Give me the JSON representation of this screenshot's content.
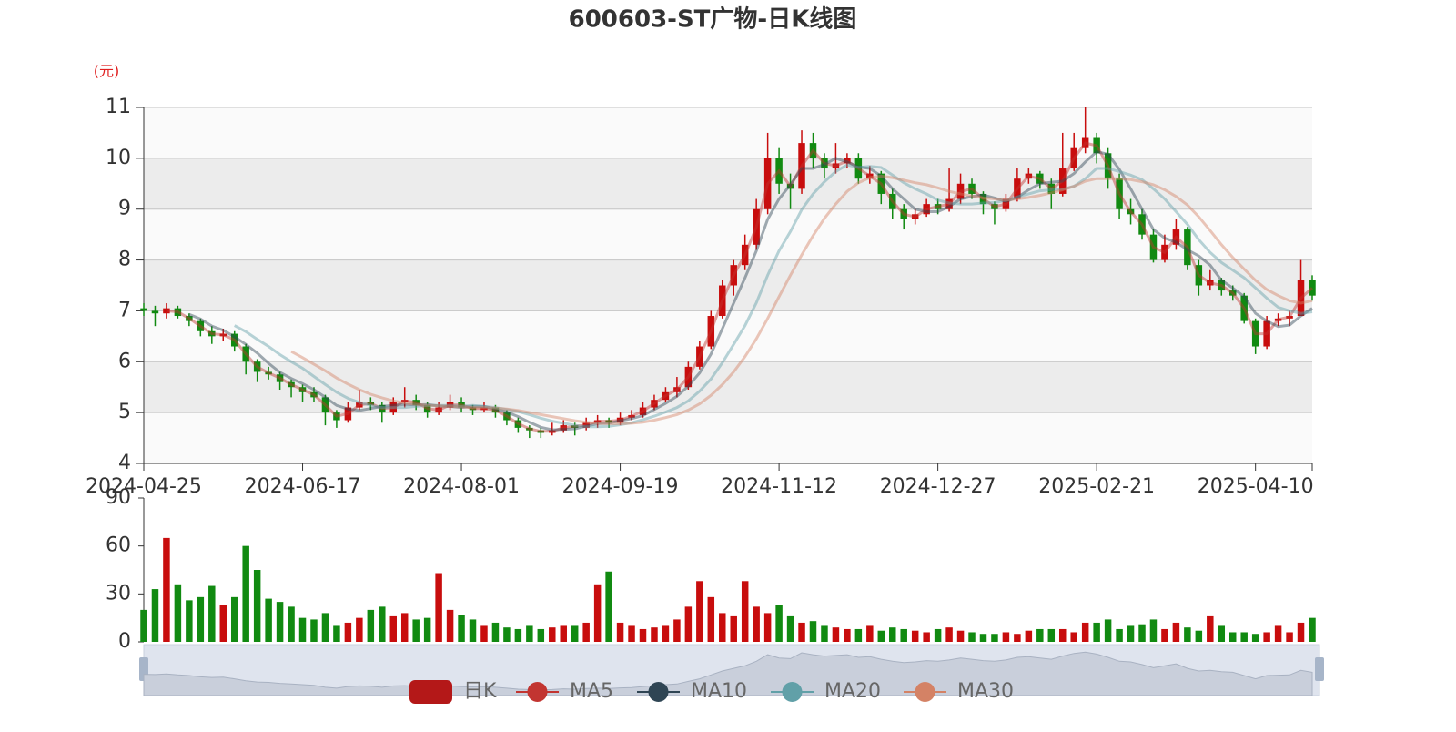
{
  "chart_data": {
    "type": "candlestick",
    "title": "600603-ST广物-日K线图",
    "y_unit": "(元)",
    "categories": [
      "2024-04-25",
      null,
      null,
      null,
      null,
      null,
      null,
      null,
      null,
      null,
      null,
      null,
      null,
      null,
      "2024-06-17",
      null,
      null,
      null,
      null,
      null,
      null,
      null,
      null,
      null,
      null,
      null,
      null,
      null,
      "2024-08-01",
      null,
      null,
      null,
      null,
      null,
      null,
      null,
      null,
      null,
      null,
      null,
      null,
      null,
      "2024-09-19",
      null,
      null,
      null,
      null,
      null,
      null,
      null,
      null,
      null,
      null,
      null,
      null,
      null,
      "2024-11-12",
      null,
      null,
      null,
      null,
      null,
      null,
      null,
      null,
      null,
      null,
      null,
      null,
      null,
      "2024-12-27",
      null,
      null,
      null,
      null,
      null,
      null,
      null,
      null,
      null,
      null,
      null,
      null,
      null,
      "2025-02-21",
      null,
      null,
      null,
      null,
      null,
      null,
      null,
      null,
      null,
      null,
      null,
      null,
      null,
      "2025-04-10",
      null,
      null,
      null,
      null,
      null
    ],
    "ylim": [
      4,
      11
    ],
    "yticks": [
      4,
      5,
      6,
      7,
      8,
      9,
      10,
      11
    ],
    "grid": true,
    "up_color": "#c80d0d",
    "down_color": "#118a11",
    "series": [
      {
        "name": "日K",
        "type": "candlestick",
        "color": "#b41818",
        "values": [
          [
            7.05,
            7.0,
            6.9,
            7.15
          ],
          [
            7.0,
            6.95,
            6.7,
            7.1
          ],
          [
            6.95,
            7.05,
            6.85,
            7.15
          ],
          [
            7.05,
            6.9,
            6.85,
            7.1
          ],
          [
            6.9,
            6.8,
            6.7,
            6.95
          ],
          [
            6.8,
            6.6,
            6.5,
            6.85
          ],
          [
            6.6,
            6.5,
            6.35,
            6.7
          ],
          [
            6.5,
            6.55,
            6.4,
            6.65
          ],
          [
            6.55,
            6.3,
            6.2,
            6.6
          ],
          [
            6.3,
            6.0,
            5.75,
            6.35
          ],
          [
            6.0,
            5.8,
            5.6,
            6.05
          ],
          [
            5.8,
            5.75,
            5.65,
            5.9
          ],
          [
            5.75,
            5.6,
            5.45,
            5.8
          ],
          [
            5.6,
            5.5,
            5.3,
            5.65
          ],
          [
            5.5,
            5.4,
            5.2,
            5.55
          ],
          [
            5.4,
            5.3,
            5.2,
            5.5
          ],
          [
            5.3,
            5.0,
            4.75,
            5.35
          ],
          [
            5.0,
            4.85,
            4.7,
            5.05
          ],
          [
            4.85,
            5.1,
            4.8,
            5.2
          ],
          [
            5.1,
            5.2,
            5.05,
            5.45
          ],
          [
            5.2,
            5.15,
            5.05,
            5.3
          ],
          [
            5.15,
            5.0,
            4.8,
            5.2
          ],
          [
            5.0,
            5.2,
            4.95,
            5.3
          ],
          [
            5.2,
            5.25,
            5.1,
            5.5
          ],
          [
            5.25,
            5.15,
            5.05,
            5.35
          ],
          [
            5.15,
            5.0,
            4.9,
            5.2
          ],
          [
            5.0,
            5.1,
            4.95,
            5.2
          ],
          [
            5.1,
            5.2,
            5.05,
            5.35
          ],
          [
            5.2,
            5.1,
            5.0,
            5.3
          ],
          [
            5.1,
            5.05,
            4.95,
            5.15
          ],
          [
            5.05,
            5.1,
            5.0,
            5.2
          ],
          [
            5.1,
            5.0,
            4.9,
            5.15
          ],
          [
            5.0,
            4.85,
            4.75,
            5.05
          ],
          [
            4.85,
            4.7,
            4.6,
            4.9
          ],
          [
            4.7,
            4.65,
            4.5,
            4.75
          ],
          [
            4.65,
            4.6,
            4.5,
            4.7
          ],
          [
            4.6,
            4.65,
            4.55,
            4.8
          ],
          [
            4.65,
            4.75,
            4.6,
            4.85
          ],
          [
            4.75,
            4.7,
            4.55,
            4.8
          ],
          [
            4.7,
            4.8,
            4.65,
            4.9
          ],
          [
            4.8,
            4.85,
            4.7,
            4.95
          ],
          [
            4.85,
            4.8,
            4.7,
            4.9
          ],
          [
            4.8,
            4.9,
            4.75,
            5.0
          ],
          [
            4.9,
            4.95,
            4.85,
            5.05
          ],
          [
            4.95,
            5.1,
            4.9,
            5.2
          ],
          [
            5.1,
            5.25,
            5.05,
            5.35
          ],
          [
            5.25,
            5.4,
            5.2,
            5.5
          ],
          [
            5.4,
            5.5,
            5.3,
            5.7
          ],
          [
            5.5,
            5.9,
            5.45,
            6.0
          ],
          [
            5.9,
            6.3,
            5.85,
            6.4
          ],
          [
            6.3,
            6.9,
            6.25,
            7.0
          ],
          [
            6.9,
            7.5,
            6.85,
            7.6
          ],
          [
            7.5,
            7.9,
            7.3,
            8.0
          ],
          [
            7.9,
            8.3,
            7.8,
            8.5
          ],
          [
            8.3,
            9.0,
            8.2,
            9.2
          ],
          [
            9.0,
            10.0,
            8.9,
            10.5
          ],
          [
            10.0,
            9.5,
            9.3,
            10.2
          ],
          [
            9.5,
            9.4,
            9.0,
            9.7
          ],
          [
            9.4,
            10.3,
            9.3,
            10.55
          ],
          [
            10.3,
            10.0,
            9.8,
            10.5
          ],
          [
            10.0,
            9.8,
            9.6,
            10.1
          ],
          [
            9.8,
            9.9,
            9.7,
            10.3
          ],
          [
            9.9,
            10.0,
            9.8,
            10.1
          ],
          [
            10.0,
            9.6,
            9.5,
            10.1
          ],
          [
            9.6,
            9.7,
            9.5,
            9.85
          ],
          [
            9.7,
            9.3,
            9.1,
            9.75
          ],
          [
            9.3,
            9.0,
            8.8,
            9.4
          ],
          [
            9.0,
            8.8,
            8.6,
            9.1
          ],
          [
            8.8,
            8.9,
            8.7,
            9.0
          ],
          [
            8.9,
            9.1,
            8.85,
            9.2
          ],
          [
            9.1,
            9.0,
            8.9,
            9.2
          ],
          [
            9.0,
            9.2,
            8.95,
            9.8
          ],
          [
            9.2,
            9.5,
            9.1,
            9.7
          ],
          [
            9.5,
            9.3,
            9.2,
            9.6
          ],
          [
            9.3,
            9.1,
            8.9,
            9.35
          ],
          [
            9.1,
            9.0,
            8.7,
            9.15
          ],
          [
            9.0,
            9.2,
            8.95,
            9.3
          ],
          [
            9.2,
            9.6,
            9.15,
            9.8
          ],
          [
            9.6,
            9.7,
            9.5,
            9.8
          ],
          [
            9.7,
            9.5,
            9.4,
            9.75
          ],
          [
            9.5,
            9.3,
            9.0,
            9.6
          ],
          [
            9.3,
            9.8,
            9.25,
            10.5
          ],
          [
            9.8,
            10.2,
            9.75,
            10.5
          ],
          [
            10.2,
            10.4,
            10.1,
            11.0
          ],
          [
            10.4,
            10.1,
            9.9,
            10.5
          ],
          [
            10.1,
            9.6,
            9.4,
            10.2
          ],
          [
            9.6,
            9.0,
            8.8,
            9.7
          ],
          [
            9.0,
            8.9,
            8.7,
            9.2
          ],
          [
            8.9,
            8.5,
            8.4,
            9.0
          ],
          [
            8.5,
            8.0,
            7.95,
            8.6
          ],
          [
            8.0,
            8.3,
            7.95,
            8.5
          ],
          [
            8.3,
            8.6,
            8.2,
            8.8
          ],
          [
            8.6,
            7.9,
            7.8,
            8.65
          ],
          [
            7.9,
            7.5,
            7.3,
            8.0
          ],
          [
            7.5,
            7.6,
            7.4,
            7.8
          ],
          [
            7.6,
            7.4,
            7.3,
            7.65
          ],
          [
            7.4,
            7.3,
            7.2,
            7.5
          ],
          [
            7.3,
            6.8,
            6.75,
            7.35
          ],
          [
            6.8,
            6.3,
            6.15,
            6.85
          ],
          [
            6.3,
            6.8,
            6.25,
            6.9
          ],
          [
            6.8,
            6.85,
            6.7,
            6.95
          ],
          [
            6.85,
            6.9,
            6.7,
            7.0
          ],
          [
            6.9,
            7.6,
            6.9,
            8.0
          ],
          [
            7.6,
            7.3,
            7.2,
            7.7
          ]
        ]
      },
      {
        "name": "MA5",
        "type": "line",
        "color": "#c23531",
        "values": [
          null,
          null,
          7.0,
          6.98,
          6.85,
          6.7,
          6.55,
          6.53,
          6.43,
          6.15,
          5.9,
          5.78,
          5.68,
          5.55,
          5.45,
          5.35,
          5.15,
          4.93,
          4.98,
          5.15,
          5.18,
          5.08,
          5.1,
          5.23,
          5.2,
          5.08,
          5.05,
          5.15,
          5.15,
          5.08,
          5.08,
          5.05,
          4.93,
          4.78,
          4.68,
          4.63,
          4.63,
          4.7,
          4.73,
          4.75,
          4.83,
          4.83,
          4.85,
          4.93,
          5.03,
          5.18,
          5.33,
          5.45,
          5.7,
          6.1,
          6.6,
          7.2,
          7.7,
          8.1,
          8.65,
          9.5,
          9.75,
          9.45,
          9.85,
          10.15,
          9.9,
          9.85,
          9.95,
          9.8,
          9.65,
          9.5,
          9.15,
          8.9,
          8.85,
          9.0,
          9.05,
          9.1,
          9.35,
          9.4,
          9.2,
          9.05,
          9.1,
          9.4,
          9.65,
          9.6,
          9.4,
          9.55,
          10.0,
          10.3,
          10.25,
          9.85,
          9.3,
          8.95,
          8.7,
          8.25,
          8.15,
          8.45,
          8.25,
          7.7,
          7.55,
          7.5,
          7.35,
          7.05,
          6.55,
          6.55,
          6.83,
          6.88,
          7.25,
          7.45
        ]
      },
      {
        "name": "MA10",
        "type": "line",
        "color": "#2f4554",
        "values": [
          null,
          null,
          null,
          null,
          6.93,
          6.84,
          6.7,
          6.62,
          6.49,
          6.34,
          6.17,
          5.97,
          5.79,
          5.67,
          5.57,
          5.45,
          5.3,
          5.14,
          5.07,
          5.04,
          5.08,
          5.12,
          5.14,
          5.16,
          5.15,
          5.16,
          5.13,
          5.12,
          5.1,
          5.12,
          5.12,
          5.07,
          5.01,
          4.92,
          4.81,
          4.71,
          4.66,
          4.67,
          4.68,
          4.73,
          4.78,
          4.79,
          4.84,
          4.88,
          4.94,
          5.06,
          5.18,
          5.32,
          5.52,
          5.78,
          6.15,
          6.65,
          7.15,
          7.65,
          8.18,
          8.8,
          9.2,
          9.48,
          9.8,
          9.8,
          9.88,
          10.0,
          9.93,
          9.83,
          9.8,
          9.65,
          9.4,
          9.2,
          9.0,
          8.95,
          8.95,
          9.05,
          9.2,
          9.25,
          9.28,
          9.22,
          9.15,
          9.23,
          9.38,
          9.5,
          9.53,
          9.55,
          9.7,
          9.93,
          10.13,
          10.08,
          9.78,
          9.4,
          9.0,
          8.6,
          8.43,
          8.35,
          8.2,
          8.08,
          7.9,
          7.6,
          7.45,
          7.28,
          6.95,
          6.8,
          6.69,
          6.72,
          6.9,
          7.05
        ]
      },
      {
        "name": "MA20",
        "type": "line",
        "color": "#61a0a8",
        "values": [
          null,
          null,
          null,
          null,
          null,
          null,
          null,
          null,
          6.71,
          6.59,
          6.44,
          6.3,
          6.14,
          6.0,
          5.87,
          5.71,
          5.55,
          5.4,
          5.28,
          5.2,
          5.14,
          5.1,
          5.1,
          5.1,
          5.12,
          5.14,
          5.14,
          5.14,
          5.12,
          5.14,
          5.12,
          5.1,
          5.06,
          5.02,
          4.96,
          4.89,
          4.83,
          4.79,
          4.75,
          4.72,
          4.72,
          4.73,
          4.76,
          4.8,
          4.86,
          4.93,
          5.01,
          5.1,
          5.23,
          5.42,
          5.66,
          5.98,
          6.34,
          6.71,
          7.16,
          7.7,
          8.18,
          8.56,
          8.99,
          9.3,
          9.54,
          9.74,
          9.87,
          9.82,
          9.84,
          9.82,
          9.67,
          9.52,
          9.4,
          9.3,
          9.18,
          9.12,
          9.1,
          9.1,
          9.12,
          9.13,
          9.17,
          9.24,
          9.3,
          9.36,
          9.38,
          9.39,
          9.45,
          9.6,
          9.8,
          9.8,
          9.74,
          9.67,
          9.58,
          9.4,
          9.2,
          8.95,
          8.7,
          8.4,
          8.15,
          7.95,
          7.8,
          7.65,
          7.45,
          7.25,
          7.07,
          7.0,
          6.95,
          6.98
        ]
      },
      {
        "name": "MA30",
        "type": "line",
        "color": "#d48265",
        "values": [
          null,
          null,
          null,
          null,
          null,
          null,
          null,
          null,
          null,
          null,
          null,
          null,
          null,
          6.2,
          6.08,
          5.95,
          5.82,
          5.68,
          5.56,
          5.45,
          5.36,
          5.29,
          5.23,
          5.19,
          5.16,
          5.14,
          5.13,
          5.12,
          5.11,
          5.1,
          5.1,
          5.09,
          5.07,
          5.04,
          5.0,
          4.96,
          4.92,
          4.88,
          4.84,
          4.81,
          4.79,
          4.78,
          4.78,
          4.79,
          4.81,
          4.85,
          4.9,
          4.96,
          5.05,
          5.17,
          5.34,
          5.55,
          5.8,
          6.1,
          6.45,
          6.85,
          7.28,
          7.7,
          8.1,
          8.48,
          8.82,
          9.1,
          9.35,
          9.52,
          9.62,
          9.65,
          9.62,
          9.57,
          9.52,
          9.48,
          9.42,
          9.35,
          9.3,
          9.26,
          9.22,
          9.2,
          9.18,
          9.2,
          9.23,
          9.27,
          9.32,
          9.38,
          9.45,
          9.55,
          9.6,
          9.6,
          9.6,
          9.58,
          9.54,
          9.48,
          9.38,
          9.25,
          9.08,
          8.85,
          8.58,
          8.3,
          8.05,
          7.82,
          7.6,
          7.42,
          7.3,
          7.2,
          7.15,
          7.2
        ]
      }
    ],
    "volume": {
      "ylim": [
        0,
        90
      ],
      "yticks": [
        0,
        30,
        60,
        90
      ],
      "values": [
        20,
        33,
        65,
        36,
        26,
        28,
        35,
        23,
        28,
        60,
        45,
        27,
        25,
        22,
        15,
        14,
        18,
        10,
        12,
        15,
        20,
        22,
        16,
        18,
        14,
        15,
        43,
        20,
        17,
        14,
        10,
        12,
        9,
        8,
        10,
        8,
        9,
        10,
        10,
        12,
        36,
        44,
        12,
        10,
        8,
        9,
        10,
        14,
        22,
        38,
        28,
        18,
        16,
        38,
        22,
        18,
        23,
        16,
        12,
        13,
        10,
        9,
        8,
        8,
        10,
        7,
        9,
        8,
        7,
        6,
        8,
        9,
        7,
        6,
        5,
        5,
        6,
        5,
        7,
        8,
        8,
        8,
        6,
        12,
        12,
        14,
        8,
        10,
        11,
        14,
        8,
        12,
        9,
        7,
        16,
        10,
        6,
        6,
        5,
        6,
        10,
        6,
        12,
        15
      ]
    }
  }
}
